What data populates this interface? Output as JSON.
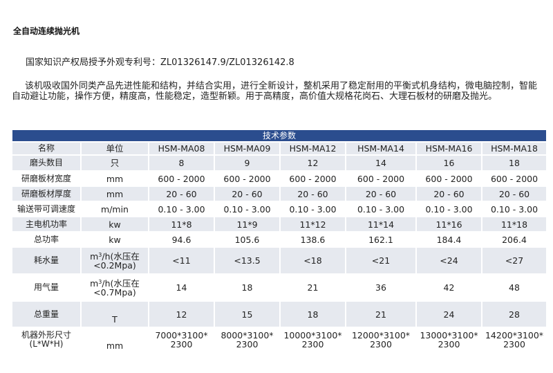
{
  "title": "全自动连续抛光机",
  "patent": "国家知识产权局授予外观专利号：ZL01326147.9/ZL01326142.8",
  "description": "该机吸收国外同类产品先进性能和结构，并结合实用，进行全新设计，整机采用了稳定耐用的平衡式机身结构，微电脑控制，智能自动避让功能，操作方便，精度高，性能稳定，造型新颖。用于高精度，高价值大规格花岗石、大理石板材的研磨及抛光。",
  "table": {
    "caption": "技术参数",
    "header": [
      "名称",
      "单位",
      "HSM-MA08",
      "HSM-MA09",
      "HSM-MA12",
      "HSM-MA14",
      "HSM-MA16",
      "HSM-MA18"
    ],
    "rows": [
      {
        "name": "磨头数目",
        "unit": "只",
        "values": [
          "8",
          "9",
          "12",
          "14",
          "16",
          "18"
        ]
      },
      {
        "name": "研磨板材宽度",
        "unit": "mm",
        "values": [
          "600 - 2000",
          "600 - 2000",
          "600 - 2000",
          "600 - 2000",
          "600 - 2000",
          "600 - 2000"
        ]
      },
      {
        "name": "研磨板材厚度",
        "unit": "mm",
        "values": [
          "20 - 60",
          "20 - 60",
          "20 - 60",
          "20 - 60",
          "20 - 60",
          "20 - 60"
        ]
      },
      {
        "name": "输送带可调速度",
        "unit": "m/min",
        "values": [
          "0.10 - 3.00",
          "0.10 - 3.00",
          "0.10 - 3.00",
          "0.10 - 3.00",
          "0.10 - 3.00",
          "0.10 - 3.00"
        ]
      },
      {
        "name": "主电机功率",
        "unit": "kw",
        "values": [
          "11*8",
          "11*9",
          "11*12",
          "11*14",
          "11*16",
          "11*18"
        ]
      },
      {
        "name": "总功率",
        "unit": "kw",
        "values": [
          "94.6",
          "105.6",
          "138.6",
          "162.1",
          "184.4",
          "206.4"
        ]
      }
    ],
    "water": {
      "name": "耗水量",
      "unit_base": "m",
      "unit_sup": "3",
      "unit_rest": "/h(水压在",
      "unit_line2": "<0.2Mpa)",
      "values": [
        "<11",
        "<13.5",
        "<18",
        "<21",
        "<24",
        "<27"
      ]
    },
    "air": {
      "name": "用气量",
      "unit_base": "m",
      "unit_sup": "3",
      "unit_rest": "/h(水压在",
      "unit_line2": "<0.7Mpa)",
      "values": [
        "14",
        "18",
        "21",
        "36",
        "42",
        "48"
      ]
    },
    "weight": {
      "name": "总重量",
      "unit": "T",
      "values": [
        "12",
        "15",
        "18",
        "21",
        "24",
        "28"
      ]
    },
    "dims": {
      "name_line1": "机器外形尺寸",
      "name_line2": "(L*W*H)",
      "unit": "mm",
      "values": [
        {
          "l1": "7000*3100*",
          "l2": "2300"
        },
        {
          "l1": "8000*3100*",
          "l2": "2300"
        },
        {
          "l1": "10000*3100*",
          "l2": "2300"
        },
        {
          "l1": "12000*3100*",
          "l2": "2300"
        },
        {
          "l1": "13000*3100*",
          "l2": "2300"
        },
        {
          "l1": "14200*3100*",
          "l2": "2300"
        }
      ]
    }
  }
}
